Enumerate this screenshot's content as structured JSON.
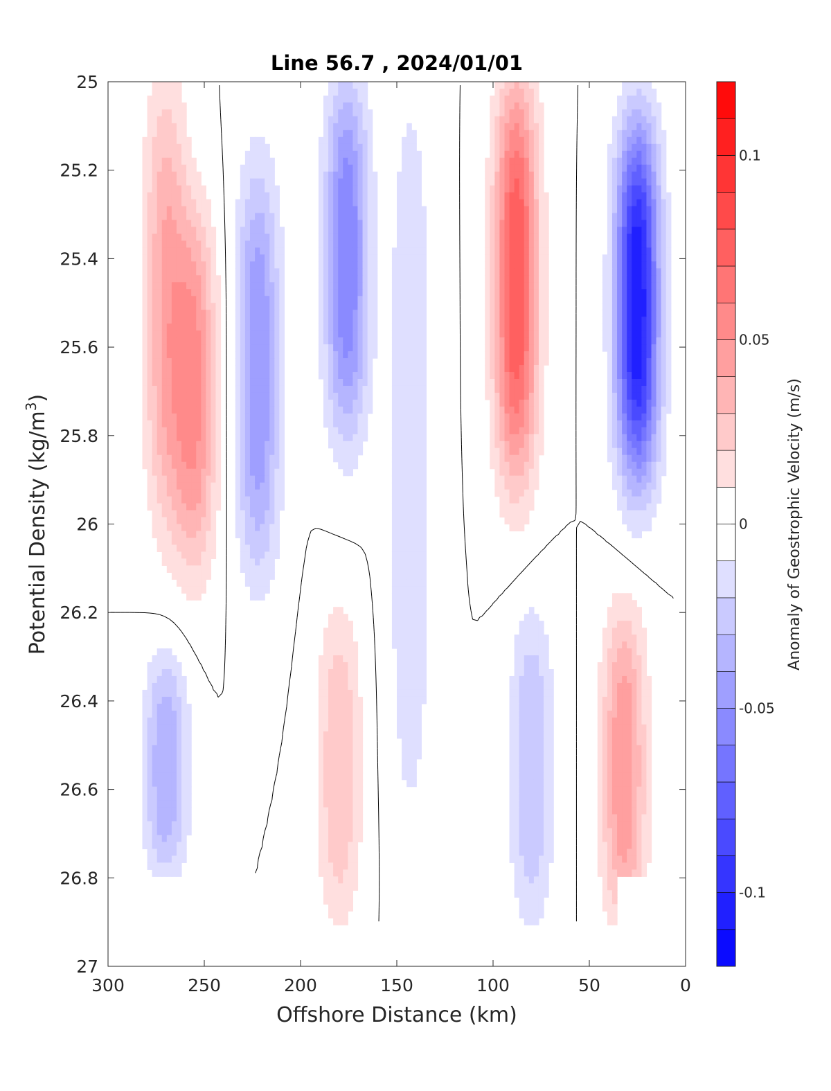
{
  "chart_data": {
    "type": "heatmap",
    "subtype": "filled contour section",
    "title": "Line 56.7 , 2024/01/01",
    "xlabel": "Offshore Distance (km)",
    "ylabel": "Potential Density (kg/m",
    "ylabel_sup": "3",
    "ylabel_close": ")",
    "xlim": [
      300,
      0
    ],
    "x_reversed": true,
    "ylim": [
      25,
      27
    ],
    "y_reversed": true,
    "x_ticks": [
      "300",
      "250",
      "200",
      "150",
      "100",
      "50",
      "0"
    ],
    "y_ticks": [
      "25",
      "25.2",
      "25.4",
      "25.6",
      "25.8",
      "26",
      "26.2",
      "26.4",
      "26.6",
      "26.8",
      "27"
    ],
    "colorbar": {
      "label": "Anomaly of Geostrophic Velocity (m/s)",
      "range": [
        -0.12,
        0.12
      ],
      "levels": [
        -0.12,
        -0.11,
        -0.1,
        -0.09,
        -0.08,
        -0.07,
        -0.06,
        -0.05,
        -0.04,
        -0.03,
        -0.02,
        -0.01,
        0,
        0.01,
        0.02,
        0.03,
        0.04,
        0.05,
        0.06,
        0.07,
        0.08,
        0.09,
        0.1,
        0.11,
        0.12
      ],
      "ticks": [
        {
          "value": 0.1,
          "label": "0.1"
        },
        {
          "value": 0.05,
          "label": "0.05"
        },
        {
          "value": 0,
          "label": "0"
        },
        {
          "value": -0.05,
          "label": "-0.05"
        },
        {
          "value": -0.1,
          "label": "-0.1"
        }
      ],
      "colormap": "blue-white-red",
      "negative_color": "#0000ff",
      "positive_color": "#ff0000",
      "zero_color": "#ffffff"
    },
    "data_extent": {
      "x_range": [
        5,
        300
      ],
      "density_min": 25,
      "density_max_offshore": 26.8,
      "density_max_midsection": 26.9
    },
    "features": [
      {
        "x_center": 270,
        "sigma_range": [
          25.0,
          26.0
        ],
        "anomaly": 0.04
      },
      {
        "x_center": 255,
        "sigma_range": [
          25.3,
          26.1
        ],
        "anomaly": 0.05
      },
      {
        "x_center": 222,
        "sigma_range": [
          25.2,
          26.1
        ],
        "anomaly": -0.05
      },
      {
        "x_center": 176,
        "sigma_range": [
          25.0,
          25.8
        ],
        "anomaly": -0.06
      },
      {
        "x_center": 143,
        "sigma_range": [
          25.0,
          26.7
        ],
        "anomaly": -0.02
      },
      {
        "x_center": 88,
        "sigma_range": [
          25.0,
          25.9
        ],
        "anomaly": 0.08
      },
      {
        "x_center": 25,
        "sigma_range": [
          25.1,
          25.9
        ],
        "anomaly": -0.11
      },
      {
        "x_center": 270,
        "sigma_range": [
          26.3,
          26.8
        ],
        "anomaly": -0.04
      },
      {
        "x_center": 180,
        "sigma_range": [
          26.2,
          26.9
        ],
        "anomaly": 0.03
      },
      {
        "x_center": 80,
        "sigma_range": [
          26.2,
          26.9
        ],
        "anomaly": -0.03
      },
      {
        "x_center": 32,
        "sigma_range": [
          26.2,
          26.9
        ],
        "anomaly": 0.05
      }
    ]
  }
}
